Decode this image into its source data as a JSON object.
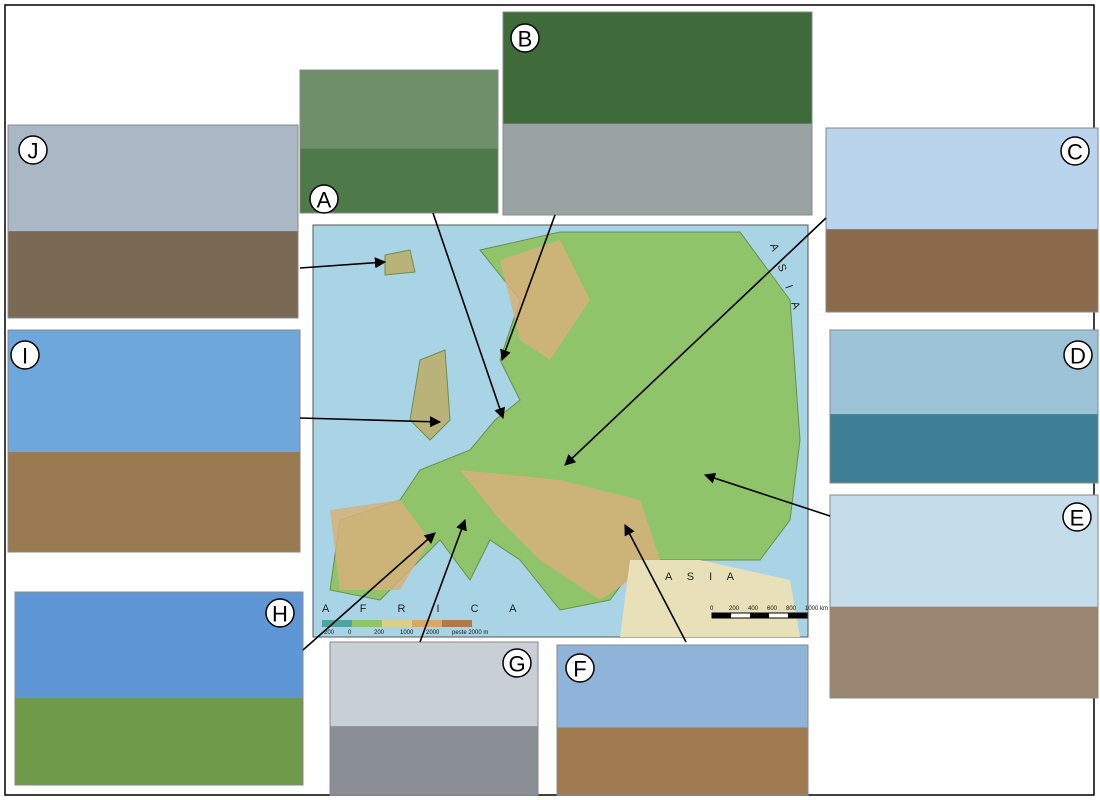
{
  "photos": [
    {
      "label": "A"
    },
    {
      "label": "B"
    },
    {
      "label": "C"
    },
    {
      "label": "D"
    },
    {
      "label": "E"
    },
    {
      "label": "F"
    },
    {
      "label": "G"
    },
    {
      "label": "H"
    },
    {
      "label": "I"
    },
    {
      "label": "J"
    }
  ],
  "map": {
    "labels": [
      "A S I A",
      "A F R I C A",
      "A S I A"
    ],
    "legend": [
      "-200",
      "0",
      "200",
      "1000",
      "2000",
      "peste 2000 m"
    ],
    "scale": [
      "0",
      "200",
      "400",
      "600",
      "800",
      "1000 km"
    ]
  }
}
